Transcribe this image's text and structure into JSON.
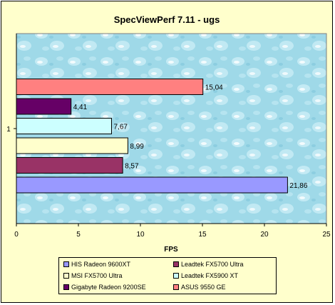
{
  "chart_data": {
    "type": "bar",
    "orientation": "horizontal",
    "title": "SpecViewPerf 7.11 - ugs",
    "xlabel": "FPS",
    "ylabel": "",
    "category_label": "1",
    "xlim": [
      0,
      25
    ],
    "x_ticks": [
      "0",
      "5",
      "10",
      "15",
      "20",
      "25"
    ],
    "grid": false,
    "legend_position": "bottom",
    "background": "light blue water texture",
    "series": [
      {
        "name": "HIS Radeon 9600XT",
        "value": 21.86,
        "label": "21,86",
        "color": "#9999FF"
      },
      {
        "name": "Leadtek FX5700 Ultra",
        "value": 8.57,
        "label": "8,57",
        "color": "#993366"
      },
      {
        "name": "MSI FX5700 Ultra",
        "value": 8.99,
        "label": "8,99",
        "color": "#FFFFCC"
      },
      {
        "name": "Leadtek FX5900 XT",
        "value": 7.67,
        "label": "7,67",
        "color": "#CCFFFF"
      },
      {
        "name": "Gigabyte Radeon 9200SE",
        "value": 4.41,
        "label": "4,41",
        "color": "#660066"
      },
      {
        "name": "ASUS 9550 GE",
        "value": 15.04,
        "label": "15,04",
        "color": "#FF8080"
      }
    ]
  }
}
